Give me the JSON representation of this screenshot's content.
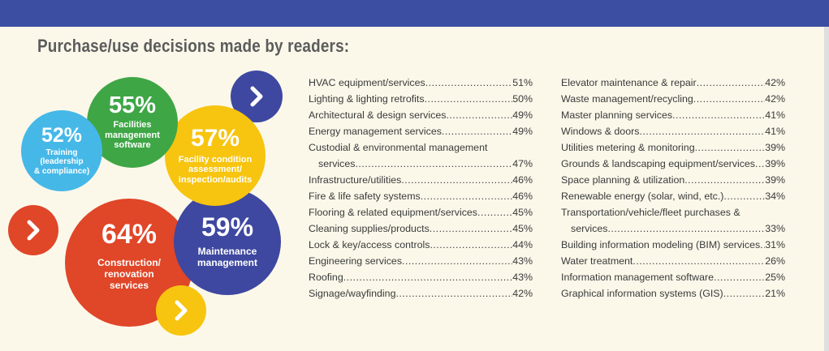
{
  "title": "Purchase/use decisions made by readers:",
  "colors": {
    "header_bar": "#3c4ea1",
    "green": "#3fa646",
    "light_blue": "#45b8e8",
    "yellow": "#f7c40f",
    "orange_red": "#e04628",
    "navy": "#3e48a0"
  },
  "chart_data": {
    "type": "bubble",
    "title": "Purchase/use decisions made by readers:",
    "bubbles": [
      {
        "value": 55,
        "label": "55%",
        "category": "Facilities management software",
        "color": "#3fa646"
      },
      {
        "value": 52,
        "label": "52%",
        "category": "Training (leadership & compliance)",
        "color": "#45b8e8"
      },
      {
        "value": 57,
        "label": "57%",
        "category": "Facility condition assessment/ inspection/audits",
        "color": "#f7c40f"
      },
      {
        "value": 64,
        "label": "64%",
        "category": "Construction/ renovation services",
        "color": "#e04628"
      },
      {
        "value": 59,
        "label": "59%",
        "category": "Maintenance management",
        "color": "#3e48a0"
      }
    ],
    "bubble_labels": {
      "b55": [
        "Facilities",
        "management",
        "software"
      ],
      "b52": [
        "Training",
        "(leadership",
        "& compliance)"
      ],
      "b57": [
        "Facility condition",
        "assessment/",
        "inspection/audits"
      ],
      "b64": [
        "Construction/",
        "renovation",
        "services"
      ],
      "b59": [
        "Maintenance",
        "management"
      ]
    },
    "list_left": [
      {
        "name": "HVAC equipment/services",
        "value": "51%"
      },
      {
        "name": "Lighting & lighting retrofits",
        "value": "50%"
      },
      {
        "name": "Architectural & design services",
        "value": "49%"
      },
      {
        "name": "Energy management services",
        "value": "49%"
      },
      {
        "name": "Custodial & environmental management",
        "name2": "services",
        "value": "47%"
      },
      {
        "name": "Infrastructure/utilities",
        "value": "46%"
      },
      {
        "name": "Fire & life safety systems",
        "value": "46%"
      },
      {
        "name": "Flooring & related equipment/services",
        "value": "45%"
      },
      {
        "name": "Cleaning supplies/products",
        "value": "45%"
      },
      {
        "name": "Lock & key/access controls",
        "value": "44%"
      },
      {
        "name": "Engineering services",
        "value": "43%"
      },
      {
        "name": "Roofing",
        "value": "43%"
      },
      {
        "name": "Signage/wayfinding",
        "value": "42%"
      }
    ],
    "list_right": [
      {
        "name": "Elevator maintenance & repair",
        "value": "42%"
      },
      {
        "name": "Waste management/recycling",
        "value": "42%"
      },
      {
        "name": "Master planning services",
        "value": "41%"
      },
      {
        "name": "Windows & doors",
        "value": "41%"
      },
      {
        "name": "Utilities metering & monitoring",
        "value": "39%"
      },
      {
        "name": "Grounds & landscaping equipment/services",
        "value": "39%"
      },
      {
        "name": "Space planning & utilization",
        "value": "39%"
      },
      {
        "name": "Renewable energy (solar, wind, etc.)",
        "value": "34%"
      },
      {
        "name": "Transportation/vehicle/fleet purchases &",
        "name2": "services",
        "value": "33%"
      },
      {
        "name": "Building information modeling (BIM) services",
        "value": "31%"
      },
      {
        "name": "Water treatment",
        "value": "26%"
      },
      {
        "name": "Information management software",
        "value": "25%"
      },
      {
        "name": "Graphical information systems (GIS)",
        "value": "21%"
      }
    ]
  }
}
